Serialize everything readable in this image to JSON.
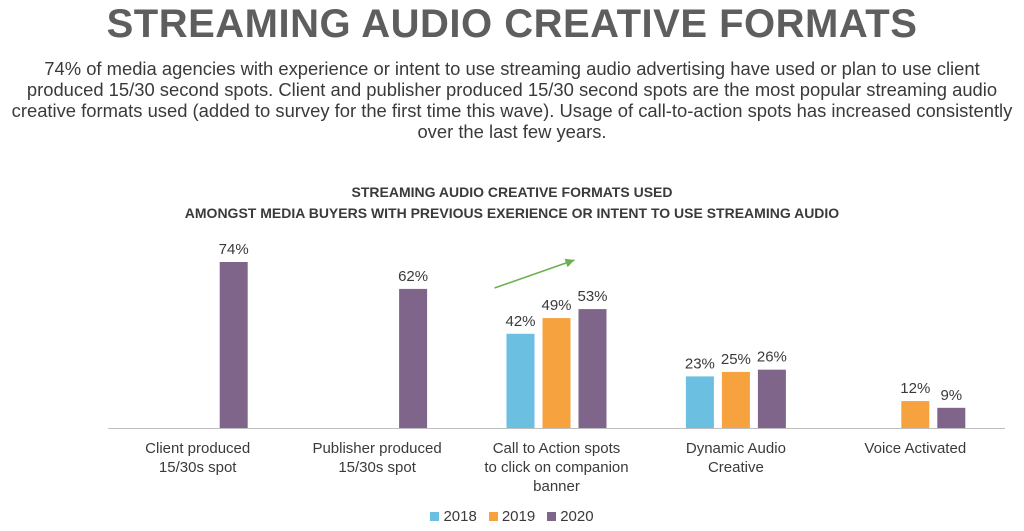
{
  "header": {
    "title": "STREAMING AUDIO CREATIVE FORMATS",
    "intro": "74% of media agencies with experience or intent to use streaming audio advertising have used or plan to use client produced 15/30 second spots. Client and publisher produced 15/30 second spots are the most popular streaming audio creative formats used (added to survey for the first time this wave).  Usage of call-to-action spots has increased consistently over the last few years."
  },
  "chart_data": {
    "type": "bar",
    "title_lines": [
      "STREAMING AUDIO CREATIVE FORMATS USED",
      "AMONGST MEDIA BUYERS WITH PREVIOUS EXERIENCE OR INTENT TO USE STREAMING AUDIO"
    ],
    "categories": [
      [
        "Client produced",
        "15/30s spot"
      ],
      [
        "Publisher produced",
        "15/30s spot"
      ],
      [
        "Call to Action spots",
        "to click on companion",
        "banner"
      ],
      [
        "Dynamic Audio",
        "Creative"
      ],
      [
        "Voice Activated"
      ]
    ],
    "series": [
      {
        "name": "2018",
        "color": "#6bbfe0",
        "values": [
          null,
          null,
          42,
          23,
          null
        ],
        "labels": [
          null,
          null,
          "42%",
          "23%",
          null
        ]
      },
      {
        "name": "2019",
        "color": "#f5a23f",
        "values": [
          null,
          null,
          49,
          25,
          12
        ],
        "labels": [
          null,
          null,
          "49%",
          "25%",
          "12%"
        ]
      },
      {
        "name": "2020",
        "color": "#7f6589",
        "values": [
          74,
          62,
          53,
          26,
          9
        ],
        "labels": [
          "74%",
          "62%",
          "53%",
          "26%",
          "9%"
        ]
      }
    ],
    "ylim": [
      0,
      80
    ],
    "grid": false,
    "legend_position": "bottom",
    "trend_arrow": {
      "category_index": 2,
      "color": "#6ab04c"
    }
  }
}
